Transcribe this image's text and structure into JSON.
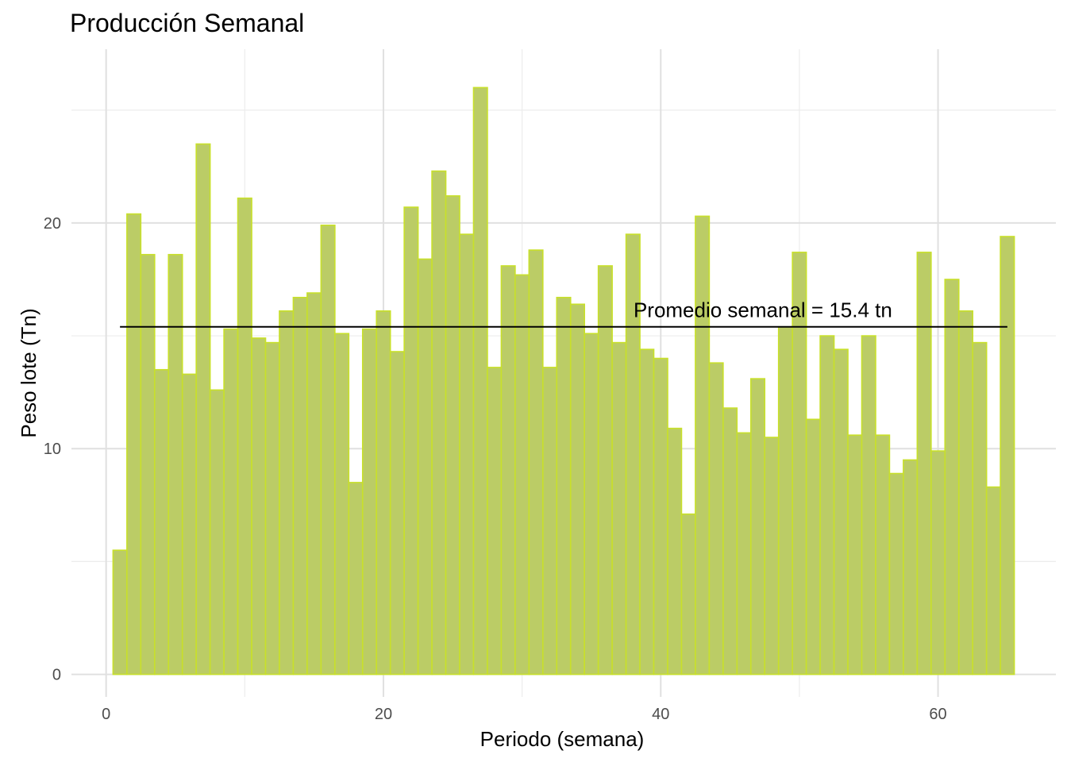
{
  "chart_data": {
    "type": "bar",
    "title": "Producción Semanal",
    "xlabel": "Periodo (semana)",
    "ylabel": "Peso lote (Tn)",
    "xlim": [
      -2.5,
      68.5
    ],
    "ylim": [
      -1.0,
      27.7
    ],
    "x_ticks": [
      0,
      20,
      40,
      60
    ],
    "y_ticks": [
      0,
      10,
      20
    ],
    "x_minor": [
      10,
      30,
      50
    ],
    "y_minor": [
      5,
      15,
      25
    ],
    "grid": true,
    "bar_color": "#bbcc66",
    "bar_edge_color": "#c8e02a",
    "mean_line": {
      "y": 15.4,
      "x_start": 1,
      "x_end": 65,
      "color": "#000000"
    },
    "annotation": {
      "text": "Promedio semanal = 15.4 tn",
      "x": 50,
      "y": 15.4
    },
    "x": [
      1,
      2,
      3,
      4,
      5,
      6,
      7,
      8,
      9,
      10,
      11,
      12,
      13,
      14,
      15,
      16,
      17,
      18,
      19,
      20,
      21,
      22,
      23,
      24,
      25,
      26,
      27,
      28,
      29,
      30,
      31,
      32,
      33,
      34,
      35,
      36,
      37,
      38,
      39,
      40,
      41,
      42,
      43,
      44,
      45,
      46,
      47,
      48,
      49,
      50,
      51,
      52,
      53,
      54,
      55,
      56,
      57,
      58,
      59,
      60,
      61,
      62,
      63,
      64,
      65
    ],
    "values": [
      5.5,
      20.4,
      18.6,
      13.5,
      18.6,
      13.3,
      23.5,
      12.6,
      15.3,
      21.1,
      14.9,
      14.7,
      16.1,
      16.7,
      16.9,
      19.9,
      15.1,
      8.5,
      15.3,
      16.1,
      14.3,
      20.7,
      18.4,
      22.3,
      21.2,
      19.5,
      26.0,
      13.6,
      18.1,
      17.7,
      18.8,
      13.6,
      16.7,
      16.4,
      15.1,
      18.1,
      14.7,
      19.5,
      14.4,
      14.0,
      10.9,
      7.1,
      20.3,
      13.8,
      11.8,
      10.7,
      13.1,
      10.5,
      15.4,
      18.7,
      11.3,
      15.0,
      14.4,
      10.6,
      15.0,
      10.6,
      8.9,
      9.5,
      18.7,
      9.9,
      17.5,
      16.1,
      14.7,
      8.3,
      19.4
    ]
  }
}
